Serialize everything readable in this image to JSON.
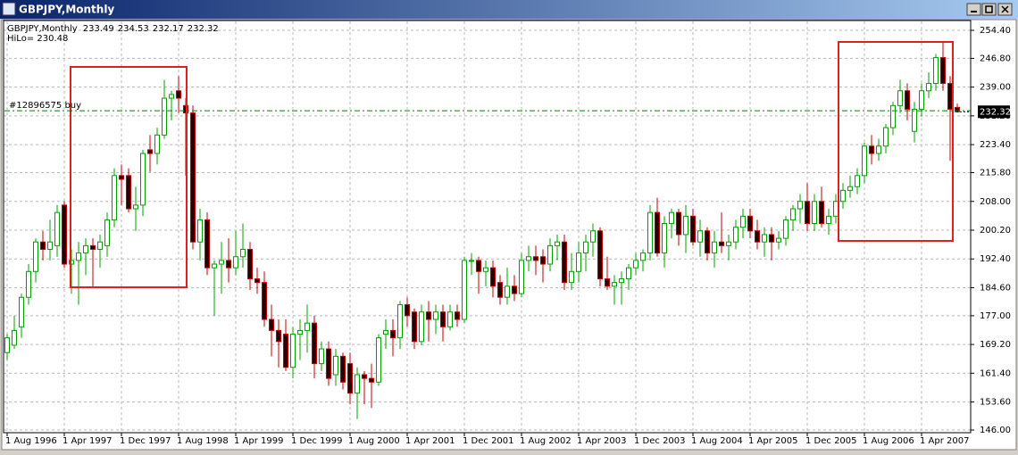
{
  "chart_data": {
    "type": "candlestick",
    "title": "GBPJPY,Monthly",
    "hilo_label": "HiLo= 230.48",
    "order": {
      "label": "#12896575 buy",
      "price": 232.6
    },
    "up_color": "#00a000",
    "down_color": "#2a0000",
    "down_wick_color": "#c00000",
    "grid": true,
    "ylim": [
      146.0,
      254.4
    ],
    "yticks": [
      {
        "value": 254.4,
        "label": "254.40"
      },
      {
        "value": 246.8,
        "label": "246.80"
      },
      {
        "value": 239.0,
        "label": "239.00"
      },
      {
        "value": 231.2,
        "label": "231.20"
      },
      {
        "value": 223.4,
        "label": "223.40"
      },
      {
        "value": 215.8,
        "label": "215.80"
      },
      {
        "value": 208.0,
        "label": "208.00"
      },
      {
        "value": 200.2,
        "label": "200.20"
      },
      {
        "value": 192.4,
        "label": "192.40"
      },
      {
        "value": 184.6,
        "label": "184.60"
      },
      {
        "value": 177.0,
        "label": "177.00"
      },
      {
        "value": 169.2,
        "label": "169.20"
      },
      {
        "value": 161.4,
        "label": "161.40"
      },
      {
        "value": 153.6,
        "label": "153.60"
      },
      {
        "value": 146.0,
        "label": "146.00"
      }
    ],
    "categories": [
      "1 Aug 1996",
      null,
      null,
      null,
      null,
      null,
      null,
      null,
      "1 Apr 1997",
      null,
      null,
      null,
      null,
      null,
      null,
      null,
      "1 Dec 1997",
      null,
      null,
      null,
      null,
      null,
      null,
      null,
      "1 Aug 1998",
      null,
      null,
      null,
      null,
      null,
      null,
      null,
      "1 Apr 1999",
      null,
      null,
      null,
      null,
      null,
      null,
      null,
      "1 Dec 1999",
      null,
      null,
      null,
      null,
      null,
      null,
      null,
      "1 Aug 2000",
      null,
      null,
      null,
      null,
      null,
      null,
      null,
      "1 Apr 2001",
      null,
      null,
      null,
      null,
      null,
      null,
      null,
      "1 Dec 2001",
      null,
      null,
      null,
      null,
      null,
      null,
      null,
      "1 Aug 2002",
      null,
      null,
      null,
      null,
      null,
      null,
      null,
      "1 Apr 2003",
      null,
      null,
      null,
      null,
      null,
      null,
      null,
      "1 Dec 2003",
      null,
      null,
      null,
      null,
      null,
      null,
      null,
      "1 Aug 2004",
      null,
      null,
      null,
      null,
      null,
      null,
      null,
      "1 Apr 2005",
      null,
      null,
      null,
      null,
      null,
      null,
      null,
      "1 Dec 2005",
      null,
      null,
      null,
      null,
      null,
      null,
      null,
      "1 Aug 2006",
      null,
      null,
      null,
      null,
      null,
      null,
      null,
      "1 Apr 2007",
      null,
      null,
      null,
      null,
      null
    ],
    "open": [
      167,
      169,
      174,
      182,
      189,
      197,
      195,
      196,
      207,
      191,
      192,
      194,
      196,
      195,
      196,
      203,
      215,
      215,
      206,
      207,
      222,
      221,
      226,
      236,
      238,
      234,
      232,
      197,
      203,
      190,
      191,
      192,
      190,
      193,
      195,
      187,
      186,
      176,
      173,
      172,
      163,
      172,
      173,
      175,
      164,
      168,
      161,
      166,
      164,
      156,
      161,
      160,
      159,
      172,
      173,
      171,
      180,
      178,
      170,
      178,
      176,
      178,
      174,
      178,
      176,
      192,
      192,
      189,
      190,
      186,
      182,
      185,
      183,
      192,
      193,
      193,
      191,
      196,
      197,
      186,
      189,
      194,
      197,
      200,
      187,
      185,
      186,
      187,
      190,
      192,
      194,
      205,
      194,
      202,
      205,
      199,
      204,
      197,
      200,
      194,
      197,
      196,
      197,
      201,
      204,
      200,
      197,
      199,
      197,
      198,
      203,
      206,
      208,
      202,
      208,
      202,
      204,
      208,
      211,
      212,
      215,
      223,
      221,
      223,
      228,
      234,
      238,
      227,
      233,
      238,
      240,
      247,
      240,
      233.49
    ],
    "high": [
      172,
      177,
      183,
      191,
      198,
      200,
      203,
      207,
      208,
      195,
      197,
      198,
      198,
      199,
      205,
      217,
      218,
      217,
      212,
      222,
      226,
      228,
      241,
      238,
      242,
      236,
      234,
      206,
      205,
      192,
      197,
      198,
      200,
      202,
      197,
      190,
      189,
      180,
      176,
      176,
      174,
      176,
      180,
      177,
      170,
      170,
      168,
      167,
      167,
      163,
      162,
      164,
      172,
      176,
      176,
      181,
      182,
      179,
      180,
      181,
      180,
      180,
      180,
      180,
      193,
      194,
      193,
      192,
      192,
      188,
      190,
      188,
      194,
      196,
      196,
      195,
      198,
      199,
      199,
      194,
      197,
      199,
      202,
      201,
      193,
      188,
      189,
      191,
      194,
      195,
      207,
      209,
      204,
      206,
      206,
      207,
      206,
      203,
      201,
      200,
      205,
      199,
      203,
      206,
      206,
      203,
      201,
      201,
      200,
      204,
      207,
      210,
      213,
      210,
      212,
      206,
      210,
      213,
      215,
      217,
      224,
      226,
      225,
      229,
      235,
      241,
      240,
      235,
      240,
      243,
      248,
      251,
      242,
      234.53
    ],
    "low": [
      165,
      168,
      171,
      180,
      186,
      192,
      192,
      193,
      190,
      183,
      180,
      188,
      185,
      190,
      193,
      201,
      207,
      205,
      200,
      204,
      216,
      218,
      225,
      230,
      232,
      215,
      195,
      192,
      188,
      177,
      183,
      186,
      188,
      190,
      184,
      183,
      174,
      166,
      163,
      162,
      160,
      165,
      167,
      160,
      162,
      158,
      158,
      157,
      153,
      149,
      153,
      152,
      158,
      168,
      166,
      168,
      174,
      168,
      169,
      170,
      172,
      170,
      173,
      174,
      175,
      188,
      183,
      185,
      182,
      180,
      180,
      181,
      182,
      189,
      188,
      186,
      189,
      192,
      184,
      184,
      186,
      189,
      193,
      185,
      184,
      180,
      180,
      184,
      188,
      189,
      192,
      193,
      190,
      198,
      196,
      194,
      196,
      193,
      192,
      190,
      194,
      192,
      195,
      198,
      198,
      195,
      193,
      192,
      195,
      196,
      200,
      202,
      200,
      200,
      201,
      199,
      202,
      206,
      209,
      210,
      213,
      218,
      219,
      221,
      226,
      232,
      230,
      224,
      231,
      236,
      238,
      238,
      219,
      232.17
    ],
    "close": [
      171,
      173,
      182,
      189,
      197,
      195,
      197,
      205,
      191,
      192,
      194,
      196,
      195,
      197,
      203,
      215,
      214,
      206,
      207,
      221,
      221,
      226,
      236,
      237,
      236,
      232,
      197,
      203,
      190,
      191,
      192,
      190,
      193,
      195,
      187,
      186,
      176,
      173,
      170,
      163,
      172,
      173,
      175,
      164,
      168,
      160,
      166,
      159,
      156,
      161,
      160,
      159,
      171,
      173,
      171,
      180,
      177,
      170,
      178,
      176,
      178,
      174,
      178,
      176,
      192,
      192,
      189,
      190,
      185,
      182,
      185,
      183,
      192,
      193,
      192,
      191,
      196,
      197,
      186,
      189,
      194,
      197,
      200,
      187,
      185,
      186,
      187,
      190,
      192,
      194,
      205,
      194,
      202,
      205,
      199,
      204,
      197,
      200,
      194,
      197,
      196,
      197,
      201,
      204,
      200,
      197,
      199,
      197,
      198,
      203,
      206,
      208,
      202,
      208,
      202,
      204,
      208,
      211,
      212,
      215,
      223,
      221,
      223,
      228,
      234,
      238,
      233,
      233,
      238,
      240,
      247,
      240,
      233,
      232.32
    ]
  }
}
